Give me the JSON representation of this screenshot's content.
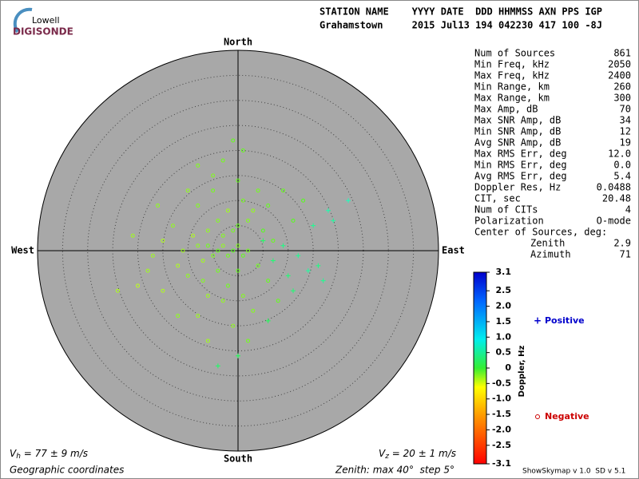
{
  "logo": {
    "top": "Lowell",
    "bottom": "DIGISONDE"
  },
  "header": {
    "line1": "STATION NAME    YYYY DATE  DDD HHMMSS AXN PPS IGP",
    "line2": "Grahamstown     2015 Jul13 194 042230 417 100 -8J"
  },
  "stats": [
    [
      "Num of Sources",
      "861"
    ],
    [
      "Min Freq, kHz",
      "2050"
    ],
    [
      "Max Freq, kHz",
      "2400"
    ],
    [
      "Min Range, km",
      "260"
    ],
    [
      "Max Range, km",
      "300"
    ],
    [
      "Max Amp, dB",
      "70"
    ],
    [
      "Max SNR Amp, dB",
      "34"
    ],
    [
      "Min SNR Amp, dB",
      "12"
    ],
    [
      "Avg SNR Amp, dB",
      "19"
    ],
    [
      "Max RMS Err, deg",
      "12.0"
    ],
    [
      "Min RMS Err, deg",
      "0.0"
    ],
    [
      "Avg RMS Err, deg",
      "5.4"
    ],
    [
      "Doppler Res, Hz",
      "0.0488"
    ],
    [
      "CIT, sec",
      "20.48"
    ],
    [
      "Num of CITs",
      "4"
    ],
    [
      "Polarization",
      "O-mode"
    ]
  ],
  "center": {
    "title": "Center of Sources, deg:",
    "zenith_label": "Zenith",
    "zenith": "2.9",
    "azimuth_label": "Azimuth",
    "azimuth": "71"
  },
  "chart_data": {
    "type": "skymap",
    "directions": {
      "north": "North",
      "south": "South",
      "east": "East",
      "west": "West"
    },
    "zenith_max": 40,
    "zenith_step": 5,
    "colorbar": {
      "label": "Doppler, Hz",
      "lim": [
        -3.1,
        3.1
      ],
      "ticks": [
        3.1,
        2.5,
        {
          "value": 2,
          "label": "2.0"
        },
        1.5,
        {
          "value": 1,
          "label": "1.0"
        },
        0.5,
        0,
        -0.5,
        {
          "value": -1,
          "label": "-1.0"
        },
        -1.5,
        {
          "value": -2,
          "label": "-2.0"
        },
        -2.5,
        -3.1
      ]
    },
    "legend": {
      "positive": "Positive",
      "negative": "Negative"
    },
    "points": [
      [
        -6,
        1,
        -0.6
      ],
      [
        -5,
        -1,
        -0.7
      ],
      [
        -4,
        0,
        -0.5
      ],
      [
        -3,
        1,
        -0.8
      ],
      [
        -2,
        -1,
        -0.6
      ],
      [
        -1,
        0,
        -0.4
      ],
      [
        0,
        1,
        -0.7
      ],
      [
        1,
        -1,
        -0.5
      ],
      [
        2,
        0,
        -0.6
      ],
      [
        -7,
        -2,
        -0.9
      ],
      [
        -8,
        1,
        -0.8
      ],
      [
        -3,
        3,
        -0.7
      ],
      [
        -1,
        4,
        -0.6
      ],
      [
        0,
        5,
        -0.5
      ],
      [
        2,
        6,
        -0.7
      ],
      [
        3,
        8,
        -0.8
      ],
      [
        1,
        10,
        -0.6
      ],
      [
        -2,
        8,
        -0.9
      ],
      [
        -4,
        6,
        -0.7
      ],
      [
        -6,
        4,
        -0.8
      ],
      [
        -9,
        3,
        -1.0
      ],
      [
        -11,
        0,
        -0.9
      ],
      [
        -12,
        -3,
        -1.0
      ],
      [
        -10,
        -5,
        -0.8
      ],
      [
        -7,
        -6,
        -0.7
      ],
      [
        -4,
        -4,
        -0.6
      ],
      [
        -2,
        -7,
        -0.6
      ],
      [
        0,
        -4,
        -0.5
      ],
      [
        1,
        -9,
        -0.7
      ],
      [
        -3,
        -10,
        -0.8
      ],
      [
        -6,
        -9,
        -0.9
      ],
      [
        -15,
        2,
        -1.0
      ],
      [
        -17,
        -1,
        -0.9
      ],
      [
        -13,
        5,
        -0.8
      ],
      [
        -8,
        9,
        -0.7
      ],
      [
        -5,
        12,
        -0.6
      ],
      [
        0,
        14,
        -0.5
      ],
      [
        4,
        12,
        -0.6
      ],
      [
        6,
        9,
        -0.5
      ],
      [
        5,
        4,
        -0.4
      ],
      [
        7,
        2,
        -0.5
      ],
      [
        4,
        -3,
        -0.6
      ],
      [
        6,
        -6,
        -0.5
      ],
      [
        3,
        -12,
        -0.7
      ],
      [
        -1,
        -15,
        -0.8
      ],
      [
        -8,
        -13,
        -0.9
      ],
      [
        -15,
        -8,
        -1.0
      ],
      [
        -20,
        -7,
        -1.1
      ],
      [
        -24,
        -8,
        -1.0
      ],
      [
        -21,
        3,
        -0.9
      ],
      [
        -3,
        18,
        -0.6
      ],
      [
        1,
        20,
        -0.5
      ],
      [
        -8,
        17,
        -0.7
      ],
      [
        9,
        12,
        -0.5
      ],
      [
        11,
        6,
        -0.4
      ],
      [
        -16,
        9,
        -0.8
      ],
      [
        -12,
        -13,
        -0.8
      ],
      [
        2,
        -18,
        -0.6
      ],
      [
        8,
        -10,
        -0.5
      ],
      [
        -5,
        15,
        -0.7
      ],
      [
        -10,
        12,
        -0.8
      ],
      [
        -18,
        -4,
        -0.9
      ],
      [
        13,
        10,
        -0.4
      ],
      [
        -1,
        22,
        -0.5
      ],
      [
        -6,
        -18,
        -0.9
      ],
      [
        5,
        2,
        0.5
      ],
      [
        7,
        -2,
        0.6
      ],
      [
        9,
        1,
        0.7
      ],
      [
        12,
        -1,
        0.8
      ],
      [
        14,
        -4,
        0.9
      ],
      [
        10,
        -5,
        0.6
      ],
      [
        15,
        5,
        0.8
      ],
      [
        18,
        8,
        1.0
      ],
      [
        19,
        6,
        0.9
      ],
      [
        16,
        -3,
        0.7
      ],
      [
        6,
        -14,
        0.4
      ],
      [
        -4,
        -23,
        0.5
      ],
      [
        0,
        -21,
        0.4
      ],
      [
        22,
        10,
        1.1
      ],
      [
        11,
        -8,
        0.6
      ],
      [
        17,
        -6,
        0.8
      ]
    ]
  },
  "footer": {
    "vh": {
      "symbol": "V",
      "subscript": "h",
      "text": " = 77 ± 9 m/s"
    },
    "vz": {
      "symbol": "V",
      "subscript": "z",
      "text": " = 20 ± 1 m/s"
    },
    "coords": "Geographic coordinates",
    "zenith_text": "Zenith: max 40°  step 5°",
    "version": "ShowSkymap v 1.0  SD v 5.1"
  }
}
